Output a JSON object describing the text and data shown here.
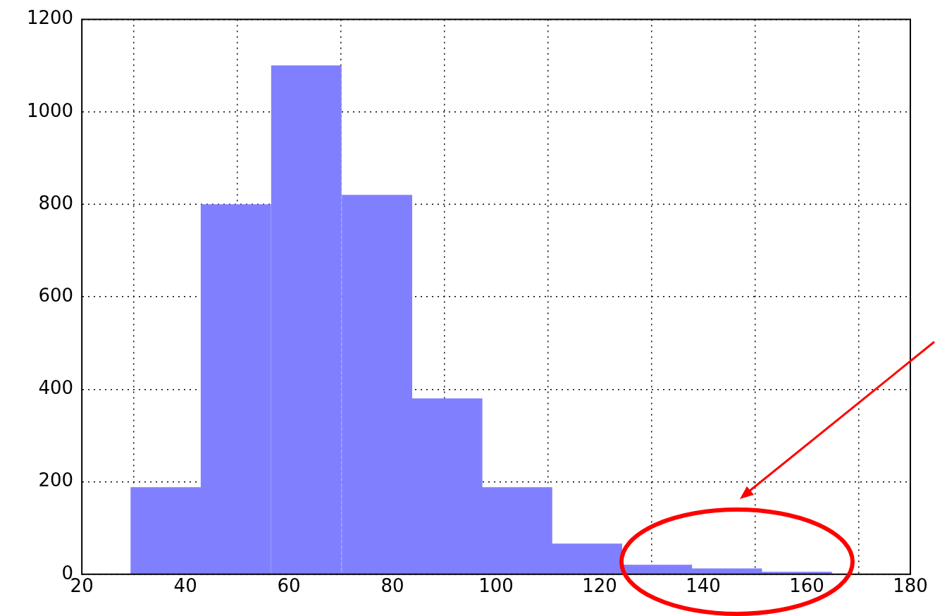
{
  "chart_data": {
    "type": "histogram",
    "bins": [
      29.4,
      43,
      56.5,
      70.2,
      83.8,
      97.3,
      110.8,
      124.3,
      137.8,
      151.3,
      164.8
    ],
    "values": [
      188,
      800,
      1100,
      820,
      380,
      188,
      66,
      20,
      12,
      5
    ],
    "color": "#8080ff",
    "xlim": [
      20,
      180
    ],
    "xticks": [
      20,
      40,
      60,
      80,
      100,
      120,
      140,
      160,
      180
    ],
    "ylim": [
      0,
      1200
    ],
    "yticks": [
      0,
      200,
      400,
      600,
      800,
      1000,
      1200
    ],
    "grid": true
  }
}
